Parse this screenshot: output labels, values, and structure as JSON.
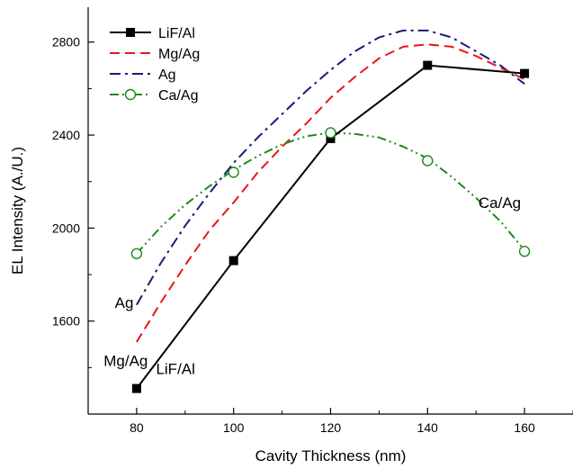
{
  "chart_data": {
    "type": "line",
    "title": "",
    "xlabel": "Cavity Thickness (nm)",
    "ylabel": "EL Intensity (A./U.)",
    "xlim": [
      70,
      170
    ],
    "ylim": [
      1200,
      2950
    ],
    "x_major_ticks": [
      80,
      100,
      120,
      140,
      160
    ],
    "x_minor_ticks": [
      70,
      90,
      110,
      130,
      150,
      170
    ],
    "y_major_ticks": [
      1600,
      2000,
      2400,
      2800
    ],
    "y_minor_ticks": [
      1400,
      1800,
      2200,
      2600
    ],
    "x_tick_labels": [
      "80",
      "100",
      "120",
      "140",
      "160"
    ],
    "y_tick_labels": [
      "1600",
      "2000",
      "2400",
      "2800"
    ],
    "legend_position": "top-left",
    "grid": false,
    "series": [
      {
        "name": "LiF/Al",
        "color": "#000000",
        "line_style": "solid",
        "marker": "filled-square",
        "x": [
          80,
          100,
          120,
          140,
          160
        ],
        "y": [
          1310,
          1860,
          2385,
          2700,
          2665
        ]
      },
      {
        "name": "Mg/Ag",
        "color": "#e8141c",
        "line_style": "dash",
        "marker": "none",
        "x": [
          80,
          85,
          90,
          95,
          100,
          105,
          110,
          115,
          120,
          125,
          130,
          135,
          140,
          145,
          150,
          155,
          160
        ],
        "y": [
          1510,
          1680,
          1840,
          1990,
          2110,
          2240,
          2350,
          2450,
          2560,
          2650,
          2730,
          2780,
          2790,
          2780,
          2740,
          2690,
          2640
        ]
      },
      {
        "name": "Ag",
        "color": "#1a1a78",
        "line_style": "dash-dot",
        "marker": "none",
        "x": [
          80,
          85,
          90,
          95,
          100,
          105,
          110,
          115,
          120,
          125,
          130,
          135,
          140,
          145,
          150,
          155,
          160
        ],
        "y": [
          1670,
          1850,
          2010,
          2150,
          2280,
          2390,
          2490,
          2590,
          2680,
          2760,
          2820,
          2850,
          2850,
          2820,
          2760,
          2700,
          2620
        ]
      },
      {
        "name": "Ca/Ag",
        "color": "#1b8a1b",
        "line_style": "dash-dot-dot",
        "marker": "open-circle",
        "x": [
          80,
          85,
          90,
          95,
          100,
          105,
          110,
          115,
          120,
          125,
          130,
          135,
          140,
          145,
          150,
          155,
          160
        ],
        "y": [
          1890,
          2005,
          2100,
          2180,
          2250,
          2310,
          2360,
          2395,
          2410,
          2405,
          2390,
          2350,
          2300,
          2220,
          2130,
          2030,
          1905
        ],
        "marker_x": [
          80,
          100,
          120,
          140,
          160
        ],
        "marker_y": [
          1890,
          2240,
          2410,
          2290,
          1900
        ]
      }
    ],
    "annotations": [
      {
        "text": "Ag",
        "x": 75.5,
        "y": 1680
      },
      {
        "text": "Mg/Ag",
        "x": 73.2,
        "y": 1430
      },
      {
        "text": "LiF/Al",
        "x": 84,
        "y": 1395
      },
      {
        "text": "Ca/Ag",
        "x": 150.5,
        "y": 2110
      }
    ]
  }
}
